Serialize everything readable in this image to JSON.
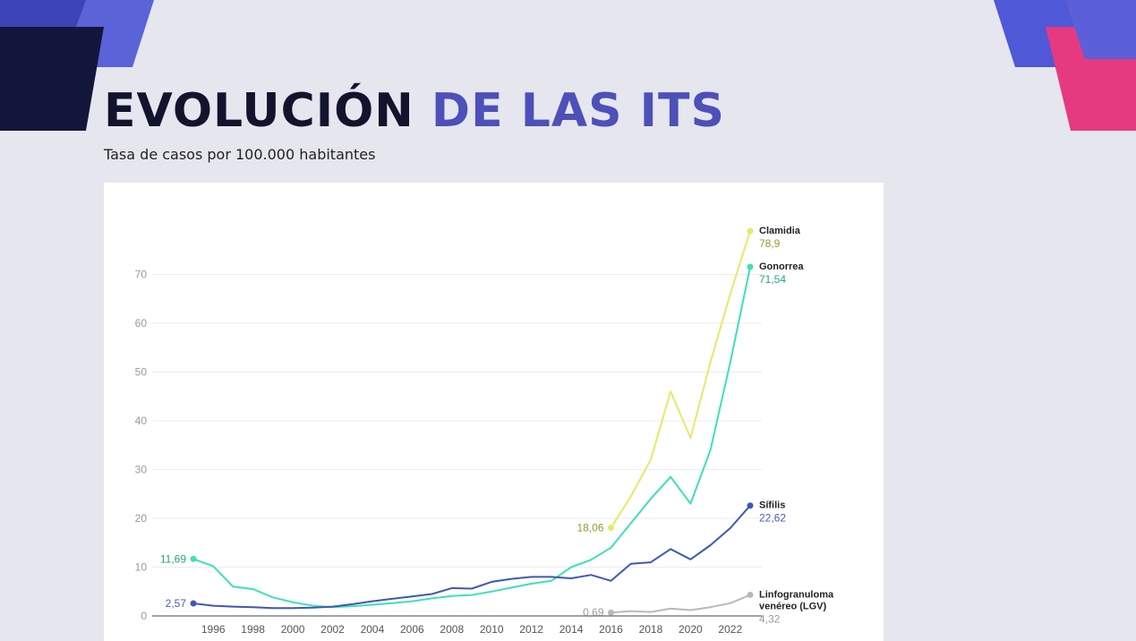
{
  "page": {
    "title_main": "EVOLUCIÓN",
    "title_accent": "DE LAS ITS",
    "subtitle": "Tasa de casos por 100.000 habitantes"
  },
  "chart_data": {
    "type": "line",
    "title": "",
    "xlabel": "",
    "ylabel": "",
    "xlim": [
      1995,
      2023
    ],
    "ylim": [
      0,
      80
    ],
    "y_ticks": [
      0,
      10,
      20,
      30,
      40,
      50,
      60,
      70
    ],
    "x_ticks": [
      1996,
      1998,
      2000,
      2002,
      2004,
      2006,
      2008,
      2010,
      2012,
      2014,
      2016,
      2018,
      2020,
      2022
    ],
    "grid": true,
    "series": [
      {
        "name": "Clamidia",
        "color": "#e8e86a",
        "x": [
          2016,
          2017,
          2018,
          2019,
          2020,
          2021,
          2022,
          2023
        ],
        "y": [
          18.06,
          24.5,
          32,
          46,
          36.5,
          52,
          66,
          78.9
        ],
        "start_label": "18,06",
        "end_label": "78,9",
        "start_label_color": "#9a9a2a",
        "end_label_color": "#9a9a2a"
      },
      {
        "name": "Gonorrea",
        "color": "#3ee0b8",
        "x": [
          1995,
          1996,
          1997,
          1998,
          1999,
          2000,
          2001,
          2002,
          2003,
          2004,
          2005,
          2006,
          2007,
          2008,
          2009,
          2010,
          2011,
          2012,
          2013,
          2014,
          2015,
          2016,
          2017,
          2018,
          2019,
          2020,
          2021,
          2022,
          2023
        ],
        "y": [
          11.69,
          10.2,
          6,
          5.5,
          3.8,
          2.8,
          2.1,
          1.8,
          2,
          2.3,
          2.6,
          3,
          3.6,
          4.1,
          4.3,
          5,
          5.8,
          6.6,
          7.2,
          10,
          11.5,
          14,
          19,
          24,
          28.5,
          23,
          34,
          52,
          71.54
        ],
        "start_label": "11,69",
        "end_label": "71,54",
        "start_label_color": "#22a57f",
        "end_label_color": "#22a57f"
      },
      {
        "name": "Sífilis",
        "color": "#3f58b5",
        "x": [
          1995,
          1996,
          1997,
          1998,
          1999,
          2000,
          2001,
          2002,
          2003,
          2004,
          2005,
          2006,
          2007,
          2008,
          2009,
          2010,
          2011,
          2012,
          2013,
          2014,
          2015,
          2016,
          2017,
          2018,
          2019,
          2020,
          2021,
          2022,
          2023
        ],
        "y": [
          2.57,
          2.1,
          1.9,
          1.8,
          1.6,
          1.6,
          1.7,
          1.9,
          2.4,
          3,
          3.5,
          4,
          4.5,
          5.7,
          5.6,
          7,
          7.6,
          8,
          8,
          7.7,
          8.4,
          7.2,
          10.7,
          11,
          13.7,
          11.6,
          14.5,
          18,
          22.62
        ],
        "start_label": "2,57",
        "end_label": "22,62",
        "start_label_color": "#4a5cc0",
        "end_label_color": "#4a5cc0"
      },
      {
        "name": "Linfogranuloma venéreo (LGV)",
        "name_lines": [
          "Linfogranuloma",
          "venéreo (LGV)"
        ],
        "color": "#b8b8b8",
        "x": [
          2016,
          2017,
          2018,
          2019,
          2020,
          2021,
          2022,
          2023
        ],
        "y": [
          0.69,
          1,
          0.8,
          1.5,
          1.2,
          1.8,
          2.6,
          4.32
        ],
        "start_label": "0,69",
        "end_label": "4,32",
        "start_label_color": "#999999",
        "end_label_color": "#999999"
      }
    ]
  }
}
